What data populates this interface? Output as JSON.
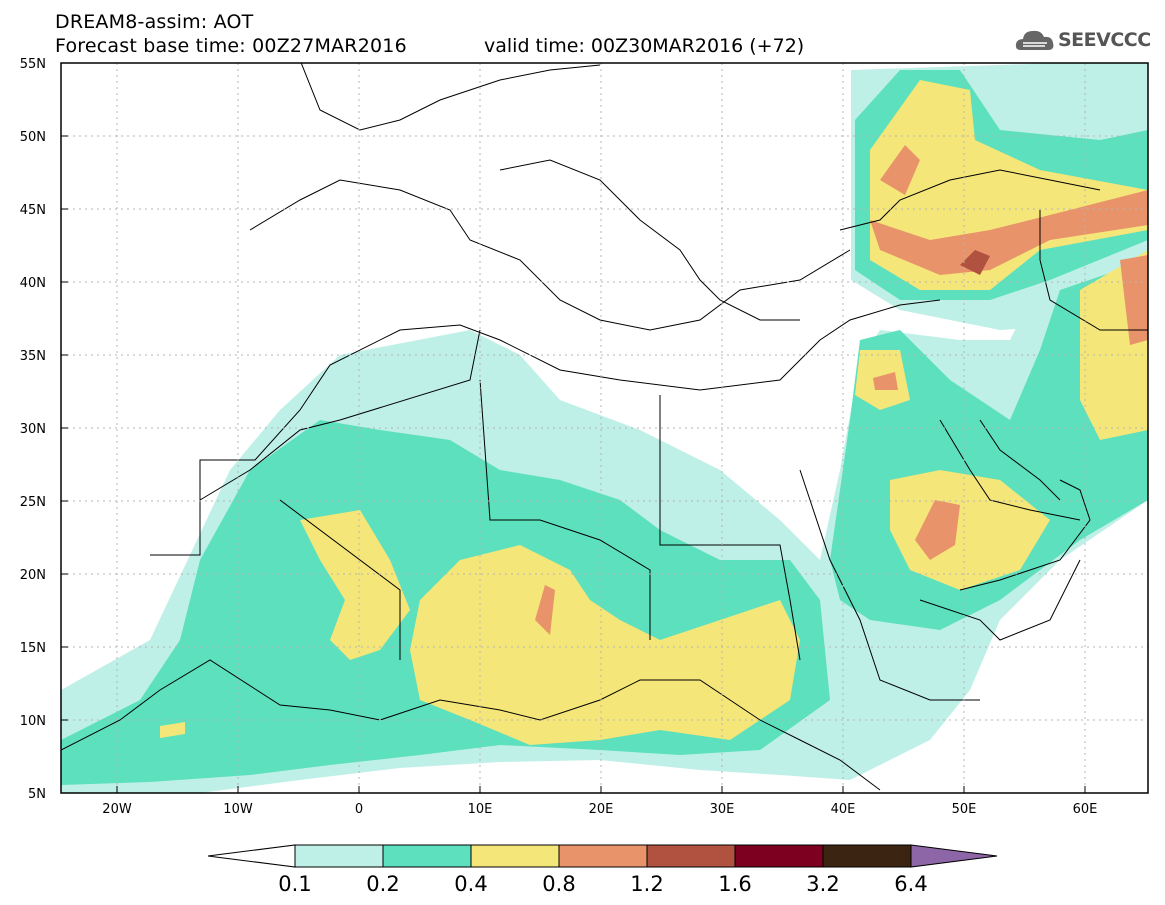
{
  "header": {
    "title": "DREAM8-assim: AOT",
    "base_time": "Forecast base time: 00Z27MAR2016",
    "valid_time": "valid time: 00Z30MAR2016 (+72)",
    "logo_text": "SEEVCCC"
  },
  "map": {
    "projection": "lat-lon",
    "lon_range": [
      -25,
      65
    ],
    "lat_range": [
      5,
      55
    ],
    "lat_labels": [
      "55N",
      "50N",
      "45N",
      "40N",
      "35N",
      "30N",
      "25N",
      "20N",
      "15N",
      "10N",
      "5N"
    ],
    "lon_labels": [
      "20W",
      "10W",
      "0",
      "10E",
      "20E",
      "30E",
      "40E",
      "50E",
      "60E"
    ],
    "gridlines": true,
    "field": "aerosol optical thickness"
  },
  "colorbar": {
    "labels": [
      "0.1",
      "0.2",
      "0.4",
      "0.8",
      "1.2",
      "1.6",
      "3.2",
      "6.4"
    ],
    "colors": [
      "#ffffff",
      "#bff0e8",
      "#5ce0bd",
      "#f5e67a",
      "#e8936a",
      "#b0523f",
      "#7d0020",
      "#3b2412",
      "#8d66a8"
    ]
  }
}
